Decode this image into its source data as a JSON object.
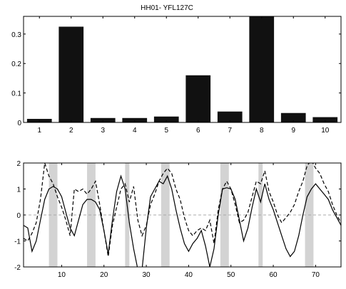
{
  "title": "HH01- YFL127C",
  "chart_data": [
    {
      "type": "bar",
      "categories": [
        "1",
        "2",
        "3",
        "4",
        "5",
        "6",
        "7",
        "8",
        "9",
        "10"
      ],
      "values": [
        0.012,
        0.325,
        0.015,
        0.015,
        0.02,
        0.16,
        0.037,
        0.36,
        0.032,
        0.018
      ],
      "ylim": [
        0,
        0.36
      ],
      "yticks": [
        "0",
        "0.1",
        "0.2",
        "0.3"
      ],
      "bar_color": "#111111"
    },
    {
      "type": "line",
      "xlim": [
        1,
        76
      ],
      "ylim": [
        -2,
        2
      ],
      "xticks": [
        "10",
        "20",
        "30",
        "40",
        "50",
        "60",
        "70"
      ],
      "yticks": [
        "-2",
        "-1",
        "0",
        "1",
        "2"
      ],
      "zero_line": {
        "y": 0,
        "style": "dashed",
        "color": "#aaaaaa"
      },
      "shaded_bands": [
        [
          7,
          9
        ],
        [
          16,
          18
        ],
        [
          25,
          26
        ],
        [
          33.5,
          35.5
        ],
        [
          47.5,
          49.5
        ],
        [
          56.5,
          57.5
        ],
        [
          67.5,
          69.5
        ]
      ],
      "band_color": "#d3d3d3",
      "series": [
        {
          "style": "solid",
          "x": [
            1,
            2,
            3,
            4,
            5,
            6,
            7,
            8,
            9,
            10,
            11,
            12,
            13,
            14,
            15,
            16,
            17,
            18,
            19,
            20,
            21,
            22,
            23,
            24,
            25,
            26,
            27,
            28,
            29,
            30,
            31,
            32,
            33,
            34,
            35,
            36,
            37,
            38,
            39,
            40,
            41,
            42,
            43,
            44,
            45,
            46,
            47,
            48,
            49,
            50,
            51,
            52,
            53,
            54,
            55,
            56,
            57,
            58,
            59,
            60,
            61,
            62,
            63,
            64,
            65,
            66,
            67,
            68,
            69,
            70,
            71,
            72,
            73,
            74,
            75,
            76
          ],
          "y": [
            -0.4,
            -0.5,
            -1.4,
            -1.0,
            -0.2,
            0.6,
            1.0,
            1.1,
            1.0,
            0.7,
            0.1,
            -0.5,
            -0.8,
            -0.2,
            0.4,
            0.6,
            0.6,
            0.5,
            0.2,
            -0.6,
            -1.5,
            -0.2,
            0.9,
            1.5,
            1.0,
            -0.3,
            -1.3,
            -2.1,
            -2.1,
            -0.5,
            0.7,
            1.0,
            1.3,
            1.2,
            1.5,
            1.0,
            0.2,
            -0.5,
            -1.1,
            -1.4,
            -1.1,
            -0.9,
            -0.6,
            -1.2,
            -2.0,
            -1.3,
            0.0,
            1.0,
            1.05,
            1.0,
            0.6,
            -0.2,
            -1.0,
            -0.5,
            0.3,
            1.0,
            0.5,
            1.2,
            0.6,
            0.2,
            -0.3,
            -0.8,
            -1.3,
            -1.6,
            -1.4,
            -0.8,
            0.0,
            0.7,
            1.0,
            1.2,
            1.0,
            0.8,
            0.6,
            0.2,
            -0.1,
            -0.4
          ]
        },
        {
          "style": "dashed",
          "x": [
            1,
            2,
            3,
            4,
            5,
            6,
            7,
            8,
            9,
            10,
            11,
            12,
            13,
            14,
            15,
            16,
            17,
            18,
            19,
            20,
            21,
            22,
            23,
            24,
            25,
            26,
            27,
            28,
            29,
            30,
            31,
            32,
            33,
            34,
            35,
            36,
            37,
            38,
            39,
            40,
            41,
            42,
            43,
            44,
            45,
            46,
            47,
            48,
            49,
            50,
            51,
            52,
            53,
            54,
            55,
            56,
            57,
            58,
            59,
            60,
            61,
            62,
            63,
            64,
            65,
            66,
            67,
            68,
            69,
            70,
            71,
            72,
            73,
            74,
            75,
            76
          ],
          "y": [
            -0.9,
            -1.0,
            -0.7,
            -0.3,
            0.6,
            2.0,
            1.5,
            1.2,
            0.7,
            0.3,
            -0.2,
            -0.8,
            1.0,
            0.9,
            1.0,
            0.8,
            1.0,
            1.3,
            0.4,
            -0.6,
            -1.6,
            -0.4,
            0.3,
            1.0,
            1.2,
            0.5,
            1.1,
            -0.2,
            -0.8,
            -0.4,
            0.4,
            0.8,
            1.3,
            1.6,
            1.8,
            1.6,
            1.0,
            0.6,
            -0.1,
            -0.6,
            -0.8,
            -0.6,
            -0.5,
            -0.6,
            -0.2,
            -1.1,
            0.2,
            1.0,
            1.3,
            1.0,
            0.4,
            -0.3,
            -0.2,
            0.1,
            0.7,
            1.3,
            1.2,
            1.7,
            0.9,
            0.5,
            0.0,
            -0.3,
            -0.1,
            0.1,
            0.4,
            0.9,
            1.3,
            1.9,
            2.1,
            1.8,
            1.6,
            1.2,
            0.9,
            0.4,
            0.0,
            -0.3
          ]
        }
      ]
    }
  ]
}
